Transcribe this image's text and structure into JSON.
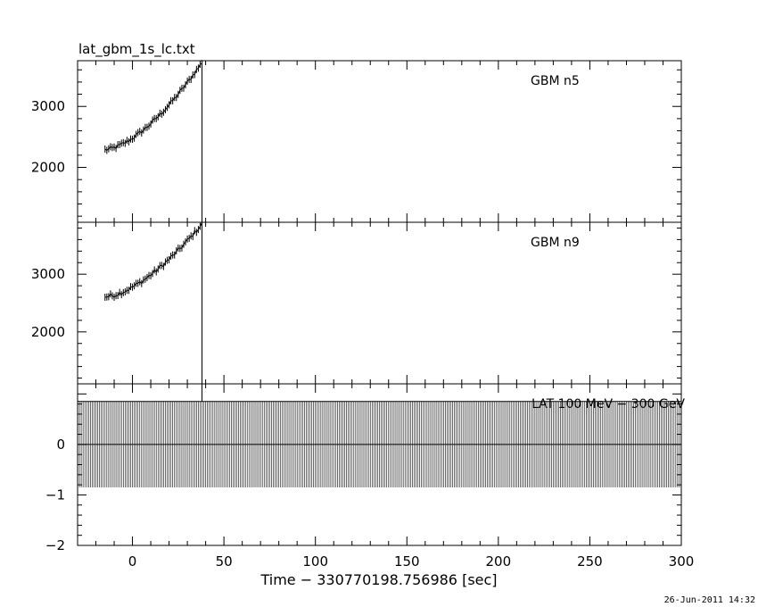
{
  "title": "lat_gbm_1s_lc.txt",
  "xlabel": "Time − 330770198.756986 [sec]",
  "datestamp": "26-Jun-2011 14:32",
  "chart_data": [
    {
      "type": "line",
      "panel_label": "GBM n5",
      "xlim": [
        -30,
        300
      ],
      "ylim": [
        1100,
        3750
      ],
      "yticks": [
        2000,
        3000
      ],
      "ytick_labels": [
        "2000",
        "3000"
      ],
      "x_start": -15,
      "x_end": 38,
      "start_value": 2290,
      "end_value": 3720,
      "curvature": 1.6,
      "noise": 35,
      "vline_x": 38
    },
    {
      "type": "line",
      "panel_label": "GBM n9",
      "xlim": [
        -30,
        300
      ],
      "ylim": [
        1100,
        3900
      ],
      "yticks": [
        2000,
        3000
      ],
      "ytick_labels": [
        "2000",
        "3000"
      ],
      "x_start": -15,
      "x_end": 38,
      "start_value": 2610,
      "end_value": 3870,
      "curvature": 1.6,
      "noise": 40,
      "vline_x": 38
    },
    {
      "type": "line",
      "panel_label": "LAT 100 MeV − 300 GeV",
      "xlim": [
        -30,
        300
      ],
      "ylim": [
        -2,
        1.2
      ],
      "yticks": [
        -2,
        -1,
        0
      ],
      "ytick_labels": [
        "−2",
        "−1",
        "0"
      ],
      "value": 0,
      "error_low": -0.85,
      "error_high": 0.85,
      "bin_width": 1,
      "vline_x": 38
    }
  ],
  "xticks": [
    0,
    50,
    100,
    150,
    200,
    250,
    300
  ],
  "xtick_labels": [
    "0",
    "50",
    "100",
    "150",
    "200",
    "250",
    "300"
  ]
}
